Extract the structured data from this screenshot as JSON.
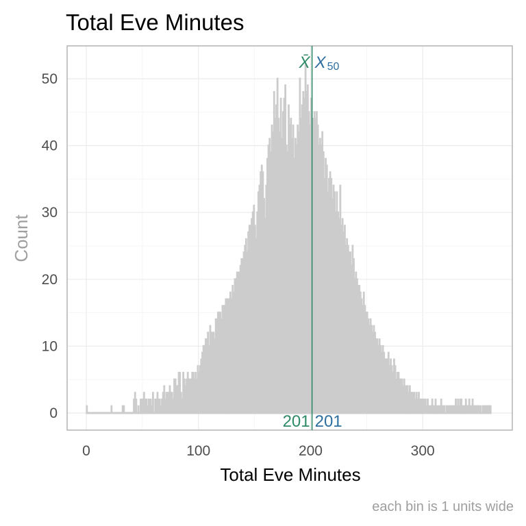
{
  "chart_data": {
    "type": "bar",
    "title": "Total Eve Minutes",
    "xlabel": "Total Eve Minutes",
    "ylabel": "Count",
    "caption": "each bin is 1 units wide",
    "xlim": [
      0,
      364
    ],
    "ylim": [
      0,
      53
    ],
    "x_ticks": [
      "0",
      "100",
      "200",
      "300"
    ],
    "y_ticks": [
      "0",
      "10",
      "20",
      "30",
      "40",
      "50"
    ],
    "bin_width": 1,
    "x_start": 0,
    "values": [
      1,
      0,
      0,
      0,
      0,
      0,
      0,
      0,
      0,
      0,
      0,
      0,
      0,
      0,
      0,
      0,
      0,
      0,
      0,
      0,
      0,
      0,
      1,
      0,
      0,
      0,
      0,
      0,
      0,
      0,
      0,
      0,
      1,
      1,
      0,
      0,
      0,
      0,
      0,
      0,
      0,
      0,
      2,
      3,
      2,
      0,
      1,
      0,
      2,
      2,
      2,
      3,
      2,
      2,
      1,
      2,
      2,
      2,
      1,
      3,
      0,
      2,
      2,
      3,
      2,
      2,
      1,
      2,
      3,
      4,
      2,
      3,
      3,
      3,
      4,
      3,
      3,
      2,
      5,
      5,
      4,
      4,
      6,
      6,
      3,
      2,
      6,
      5,
      4,
      5,
      6,
      5,
      5,
      5,
      6,
      6,
      5,
      6,
      5,
      7,
      6,
      7,
      8,
      9,
      10,
      10,
      11,
      11,
      12,
      10,
      13,
      12,
      12,
      12,
      11,
      14,
      14,
      15,
      15,
      15,
      14,
      16,
      16,
      16,
      17,
      17,
      17,
      17,
      18,
      17,
      19,
      18,
      20,
      20,
      21,
      21,
      21,
      22,
      23,
      23,
      24,
      25,
      26,
      24,
      27,
      28,
      28,
      29,
      30,
      31,
      28,
      26,
      30,
      33,
      34,
      36,
      37,
      36,
      32,
      29,
      34,
      38,
      40,
      41,
      39,
      43,
      42,
      48,
      44,
      46,
      50,
      44,
      42,
      47,
      41,
      45,
      47,
      49,
      40,
      39,
      46,
      43,
      44,
      41,
      43,
      38,
      41,
      40,
      43,
      42,
      50,
      44,
      46,
      48,
      47,
      52,
      48,
      49,
      45,
      43,
      47,
      44,
      44,
      45,
      44,
      45,
      43,
      40,
      41,
      40,
      42,
      39,
      35,
      38,
      37,
      33,
      35,
      36,
      35,
      32,
      34,
      33,
      30,
      33,
      30,
      29,
      34,
      28,
      29,
      27,
      28,
      25,
      26,
      25,
      24,
      24,
      22,
      25,
      23,
      20,
      21,
      20,
      19,
      19,
      18,
      17,
      16,
      18,
      16,
      15,
      15,
      14,
      13,
      14,
      13,
      12,
      13,
      12,
      11,
      11,
      10,
      11,
      10,
      9,
      10,
      9,
      8,
      8,
      8,
      9,
      7,
      8,
      7,
      6,
      8,
      7,
      5,
      6,
      6,
      5,
      5,
      5,
      4,
      5,
      4,
      4,
      4,
      3,
      4,
      3,
      3,
      3,
      3,
      2,
      3,
      2,
      3,
      2,
      2,
      2,
      2,
      2,
      2,
      1,
      2,
      1,
      1,
      1,
      2,
      1,
      1,
      2,
      1,
      1,
      1,
      1,
      2,
      1,
      1,
      1,
      0,
      1,
      1,
      1,
      1,
      1,
      1,
      1,
      1,
      2,
      1,
      2,
      1,
      2,
      2,
      1,
      1,
      1,
      2,
      1,
      1,
      2,
      1,
      1,
      2,
      1,
      1,
      1,
      1,
      1,
      1,
      1,
      0,
      1,
      1,
      1,
      1,
      1,
      1,
      1,
      1
    ],
    "reference_lines": [
      {
        "name": "mean",
        "symbol": "X̄",
        "value": 201,
        "label": "201",
        "color": "#2e8b66"
      },
      {
        "name": "median",
        "symbol": "X",
        "subscript": "50",
        "value": 201,
        "label": "201",
        "color": "#2c6fa0"
      }
    ],
    "bar_color": "#cccccc",
    "grid": true
  }
}
